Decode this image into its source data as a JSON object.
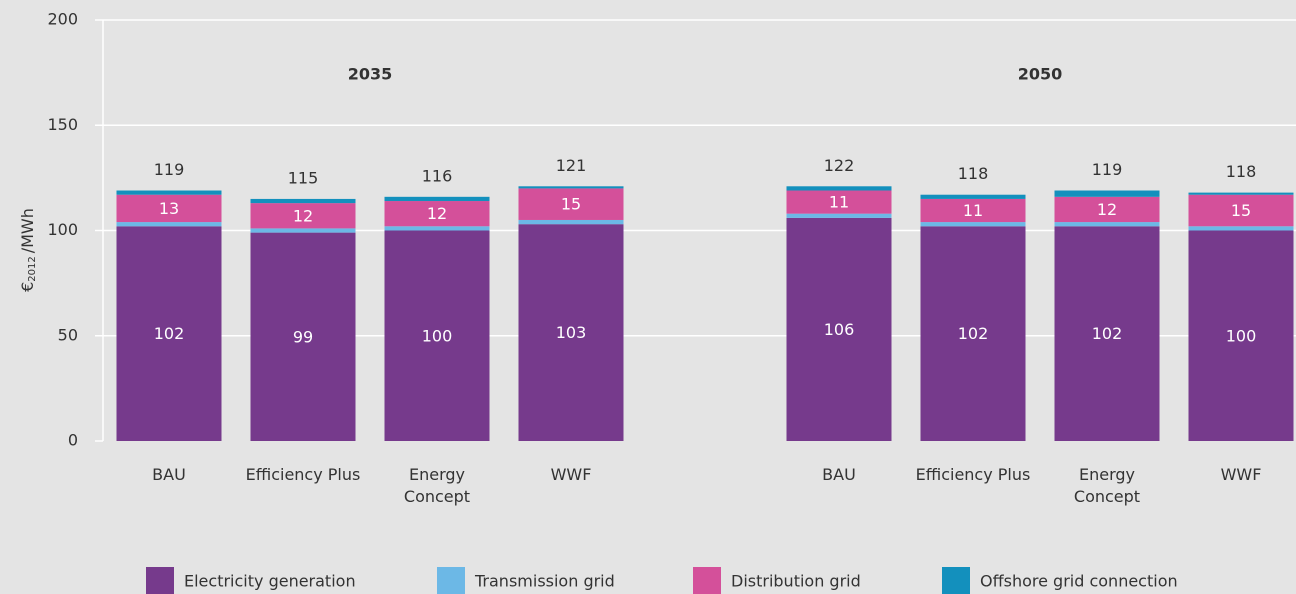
{
  "chart_data": {
    "type": "stacked_bar",
    "group_labels": [
      "2035",
      "2050"
    ],
    "categories": [
      "BAU",
      "Efficiency Plus",
      "Energy Concept",
      "WWF",
      "BAU",
      "Efficiency Plus",
      "Energy Concept",
      "WWF"
    ],
    "series": [
      {
        "name": "Electricity generation",
        "color": "#763a8c",
        "values": [
          102,
          99,
          100,
          103,
          106,
          102,
          102,
          100
        ],
        "labeled": true
      },
      {
        "name": "Transmission grid",
        "color": "#6cb8e6",
        "values": [
          2,
          2,
          2,
          2,
          2,
          2,
          2,
          2
        ],
        "labeled": false
      },
      {
        "name": "Distribution grid",
        "color": "#d4509a",
        "values": [
          13,
          12,
          12,
          15,
          11,
          11,
          12,
          15
        ],
        "labeled": true
      },
      {
        "name": "Offshore grid connection",
        "color": "#1390bd",
        "values": [
          2,
          2,
          2,
          1,
          2,
          2,
          3,
          1
        ],
        "labeled": false
      }
    ],
    "totals": [
      119,
      115,
      116,
      121,
      122,
      118,
      119,
      118
    ],
    "ylabel": {
      "symbol": "€",
      "subscript": "2012",
      "unit": "/MWh"
    },
    "ylim": [
      0,
      200
    ],
    "yticks": [
      0,
      50,
      100,
      150,
      200
    ],
    "grid": true,
    "legend": "bottom"
  }
}
